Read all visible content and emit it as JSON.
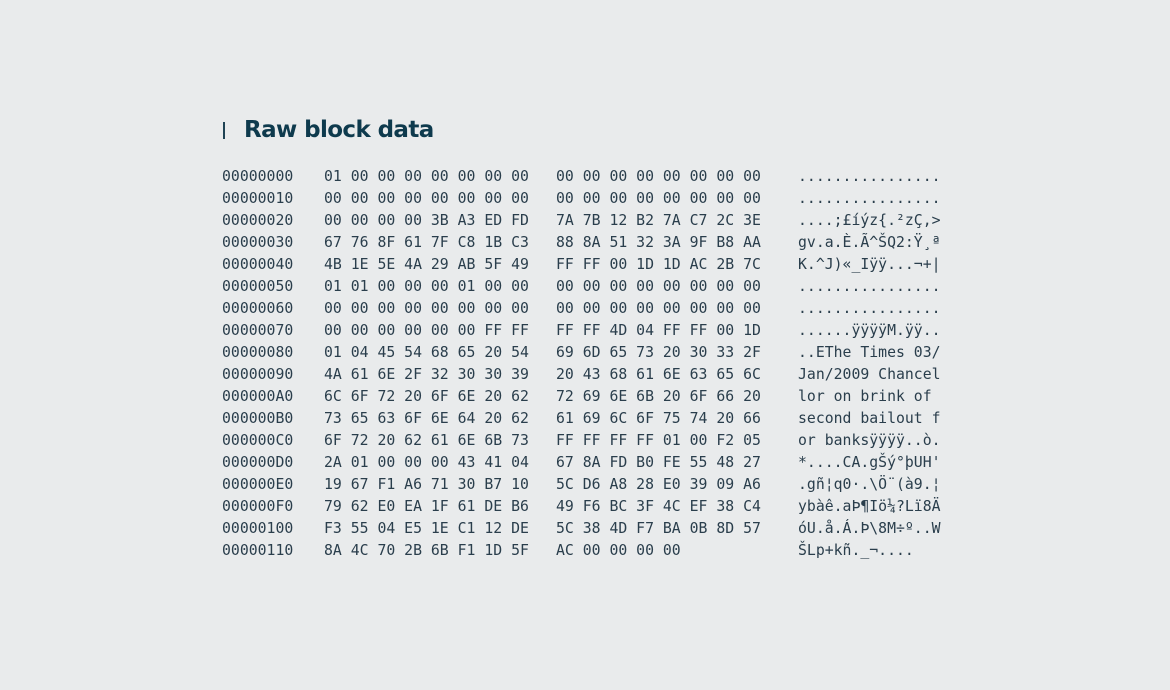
{
  "section": {
    "title": "Raw block data"
  },
  "hex_dump": {
    "rows": [
      {
        "offset": "00000000",
        "bytes_a": "01 00 00 00 00 00 00 00",
        "bytes_b": "00 00 00 00 00 00 00 00",
        "ascii": "................"
      },
      {
        "offset": "00000010",
        "bytes_a": "00 00 00 00 00 00 00 00",
        "bytes_b": "00 00 00 00 00 00 00 00",
        "ascii": "................"
      },
      {
        "offset": "00000020",
        "bytes_a": "00 00 00 00 3B A3 ED FD",
        "bytes_b": "7A 7B 12 B2 7A C7 2C 3E",
        "ascii": "....;£íýz{.²zÇ,>"
      },
      {
        "offset": "00000030",
        "bytes_a": "67 76 8F 61 7F C8 1B C3",
        "bytes_b": "88 8A 51 32 3A 9F B8 AA",
        "ascii": "gv.a.È.Ã^ŠQ2:Ÿ¸ª"
      },
      {
        "offset": "00000040",
        "bytes_a": "4B 1E 5E 4A 29 AB 5F 49",
        "bytes_b": "FF FF 00 1D 1D AC 2B 7C",
        "ascii": "K.^J)«_Iÿÿ...¬+|"
      },
      {
        "offset": "00000050",
        "bytes_a": "01 01 00 00 00 01 00 00",
        "bytes_b": "00 00 00 00 00 00 00 00",
        "ascii": "................"
      },
      {
        "offset": "00000060",
        "bytes_a": "00 00 00 00 00 00 00 00",
        "bytes_b": "00 00 00 00 00 00 00 00",
        "ascii": "................"
      },
      {
        "offset": "00000070",
        "bytes_a": "00 00 00 00 00 00 FF FF",
        "bytes_b": "FF FF 4D 04 FF FF 00 1D",
        "ascii": "......ÿÿÿÿM.ÿÿ.."
      },
      {
        "offset": "00000080",
        "bytes_a": "01 04 45 54 68 65 20 54",
        "bytes_b": "69 6D 65 73 20 30 33 2F",
        "ascii": "..EThe Times 03/"
      },
      {
        "offset": "00000090",
        "bytes_a": "4A 61 6E 2F 32 30 30 39",
        "bytes_b": "20 43 68 61 6E 63 65 6C",
        "ascii": "Jan/2009 Chancel"
      },
      {
        "offset": "000000A0",
        "bytes_a": "6C 6F 72 20 6F 6E 20 62",
        "bytes_b": "72 69 6E 6B 20 6F 66 20",
        "ascii": "lor on brink of "
      },
      {
        "offset": "000000B0",
        "bytes_a": "73 65 63 6F 6E 64 20 62",
        "bytes_b": "61 69 6C 6F 75 74 20 66",
        "ascii": "second bailout f"
      },
      {
        "offset": "000000C0",
        "bytes_a": "6F 72 20 62 61 6E 6B 73",
        "bytes_b": "FF FF FF FF 01 00 F2 05",
        "ascii": "or banksÿÿÿÿ..ò."
      },
      {
        "offset": "000000D0",
        "bytes_a": "2A 01 00 00 00 43 41 04",
        "bytes_b": "67 8A FD B0 FE 55 48 27",
        "ascii": "*....CA.gŠý°þUH'"
      },
      {
        "offset": "000000E0",
        "bytes_a": "19 67 F1 A6 71 30 B7 10",
        "bytes_b": "5C D6 A8 28 E0 39 09 A6",
        "ascii": ".gñ¦q0·.\\Ö¨(à9.¦"
      },
      {
        "offset": "000000F0",
        "bytes_a": "79 62 E0 EA 1F 61 DE B6",
        "bytes_b": "49 F6 BC 3F 4C EF 38 C4",
        "ascii": "ybàê.aÞ¶Iö¼?Lï8Ä"
      },
      {
        "offset": "00000100",
        "bytes_a": "F3 55 04 E5 1E C1 12 DE",
        "bytes_b": "5C 38 4D F7 BA 0B 8D 57",
        "ascii": "óU.å.Á.Þ\\8M÷º..W"
      },
      {
        "offset": "00000110",
        "bytes_a": "8A 4C 70 2B 6B F1 1D 5F",
        "bytes_b": "AC 00 00 00 00",
        "ascii": "ŠLp+kñ._¬...."
      }
    ]
  }
}
